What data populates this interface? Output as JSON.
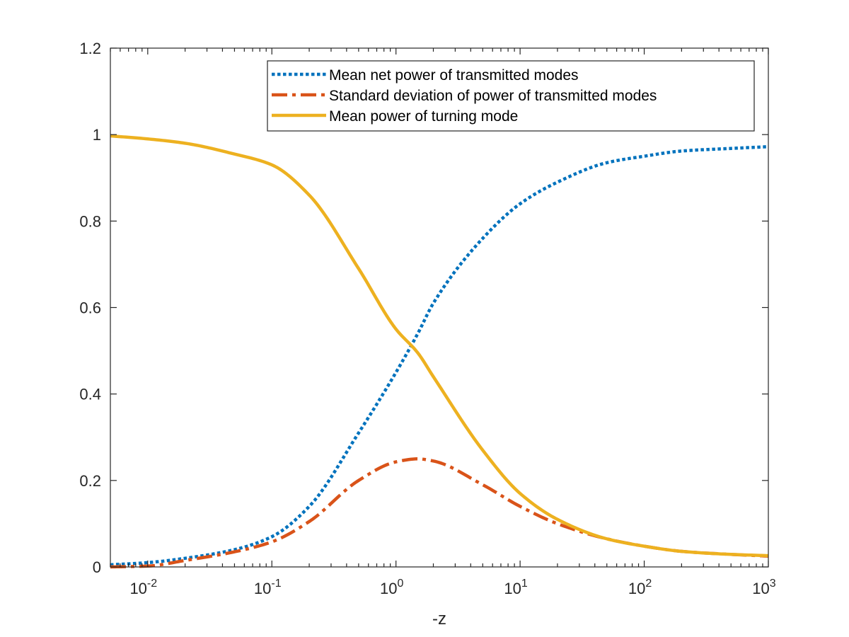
{
  "chart_data": {
    "type": "line",
    "title": "",
    "xlabel": "-z",
    "ylabel": "",
    "xscale": "log",
    "xlim": [
      0.005,
      1000
    ],
    "ylim": [
      0,
      1.2
    ],
    "grid": false,
    "legend_position": "top-right",
    "x_ticks": [
      {
        "value": 0.01,
        "base": "10",
        "exp": "-2"
      },
      {
        "value": 0.1,
        "base": "10",
        "exp": "-1"
      },
      {
        "value": 1,
        "base": "10",
        "exp": "0"
      },
      {
        "value": 10,
        "base": "10",
        "exp": "1"
      },
      {
        "value": 100,
        "base": "10",
        "exp": "2"
      },
      {
        "value": 1000,
        "base": "10",
        "exp": "3"
      }
    ],
    "y_ticks": [
      {
        "value": 0,
        "label": "0"
      },
      {
        "value": 0.2,
        "label": "0.2"
      },
      {
        "value": 0.4,
        "label": "0.4"
      },
      {
        "value": 0.6,
        "label": "0.6"
      },
      {
        "value": 0.8,
        "label": "0.8"
      },
      {
        "value": 1.0,
        "label": "1"
      },
      {
        "value": 1.2,
        "label": "1.2"
      }
    ],
    "x": [
      0.005,
      0.01,
      0.02,
      0.05,
      0.1,
      0.2,
      0.5,
      1,
      1.5,
      2,
      5,
      10,
      20,
      50,
      100,
      200,
      500,
      1000
    ],
    "series": [
      {
        "name": "Mean net power of transmitted modes",
        "color": "#0072BD",
        "style": "dotted",
        "values": [
          0.005,
          0.01,
          0.02,
          0.04,
          0.07,
          0.14,
          0.31,
          0.45,
          0.54,
          0.61,
          0.76,
          0.84,
          0.89,
          0.935,
          0.95,
          0.962,
          0.968,
          0.972
        ]
      },
      {
        "name": "Standard deviation of power of transmitted modes",
        "color": "#D95319",
        "style": "dashdot",
        "values": [
          0.0,
          0.002,
          0.015,
          0.035,
          0.058,
          0.105,
          0.2,
          0.243,
          0.25,
          0.245,
          0.19,
          0.14,
          0.1,
          0.065,
          0.048,
          0.036,
          0.029,
          0.025
        ]
      },
      {
        "name": "Mean power of turning mode",
        "color": "#EDB120",
        "style": "solid",
        "values": [
          0.997,
          0.99,
          0.98,
          0.955,
          0.93,
          0.86,
          0.69,
          0.55,
          0.495,
          0.44,
          0.27,
          0.17,
          0.11,
          0.065,
          0.048,
          0.036,
          0.029,
          0.026
        ]
      }
    ]
  }
}
